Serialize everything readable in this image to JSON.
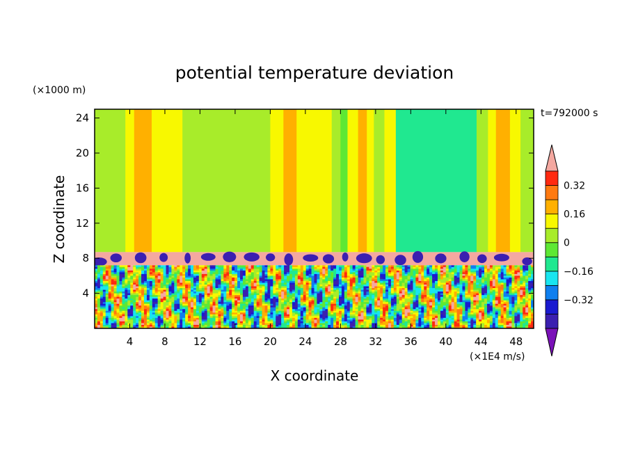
{
  "chart_data": {
    "type": "heatmap",
    "title": "potential temperature deviation",
    "xlabel": "X coordinate",
    "ylabel": "Z coordinate",
    "x_unit": "(×1E4 m/s)",
    "y_unit": "(×1000 m)",
    "time_label": "t=792000 s",
    "xlim": [
      0,
      50
    ],
    "ylim": [
      0,
      25
    ],
    "x_ticks": [
      4,
      8,
      12,
      16,
      20,
      24,
      28,
      32,
      36,
      40,
      44,
      48
    ],
    "y_ticks": [
      4,
      8,
      12,
      16,
      20,
      24
    ],
    "colorbar": {
      "levels": [
        -0.48,
        -0.4,
        -0.32,
        -0.24,
        -0.16,
        -0.08,
        0,
        0.08,
        0.16,
        0.24,
        0.32,
        0.4
      ],
      "colors": [
        "#7a11b8",
        "#3b1fb0",
        "#1a1ad0",
        "#0f7fef",
        "#18e5f0",
        "#20e890",
        "#5ee834",
        "#a8ec2a",
        "#f8f800",
        "#ffb000",
        "#ff7a10",
        "#ff2a10",
        "#f4a8a0"
      ],
      "labels": [
        {
          "value": -0.32,
          "text": "−0.32"
        },
        {
          "value": -0.16,
          "text": "−0.16"
        },
        {
          "value": 0,
          "text": "0"
        },
        {
          "value": 0.16,
          "text": "0.16"
        },
        {
          "value": 0.32,
          "text": "0.32"
        }
      ]
    },
    "upper_layer_bands": [
      {
        "x0": 0,
        "x1": 1.5,
        "value": 0.0
      },
      {
        "x0": 1.5,
        "x1": 3.5,
        "value": 0.06
      },
      {
        "x0": 3.5,
        "x1": 4.5,
        "value": 0.1
      },
      {
        "x0": 4.5,
        "x1": 6.5,
        "value": 0.17
      },
      {
        "x0": 6.5,
        "x1": 10,
        "value": 0.08
      },
      {
        "x0": 10,
        "x1": 12,
        "value": 0.05
      },
      {
        "x0": 12,
        "x1": 15,
        "value": 0.0
      },
      {
        "x0": 15,
        "x1": 20,
        "value": 0.07
      },
      {
        "x0": 20,
        "x1": 21.5,
        "value": 0.09
      },
      {
        "x0": 21.5,
        "x1": 23,
        "value": 0.17
      },
      {
        "x0": 23,
        "x1": 27,
        "value": 0.08
      },
      {
        "x0": 27,
        "x1": 28,
        "value": 0.04
      },
      {
        "x0": 28,
        "x1": 28.8,
        "value": -0.06
      },
      {
        "x0": 28.8,
        "x1": 30,
        "value": 0.1
      },
      {
        "x0": 30,
        "x1": 31,
        "value": 0.18
      },
      {
        "x0": 31,
        "x1": 31.8,
        "value": 0.09
      },
      {
        "x0": 31.8,
        "x1": 33,
        "value": 0.02
      },
      {
        "x0": 33,
        "x1": 34.3,
        "value": 0.09
      },
      {
        "x0": 34.3,
        "x1": 43.5,
        "value": -0.1
      },
      {
        "x0": 43.5,
        "x1": 44.8,
        "value": 0.02
      },
      {
        "x0": 44.8,
        "x1": 45.7,
        "value": 0.1
      },
      {
        "x0": 45.7,
        "x1": 47.3,
        "value": 0.18
      },
      {
        "x0": 47.3,
        "x1": 48.5,
        "value": 0.1
      },
      {
        "x0": 48.5,
        "x1": 50,
        "value": 0.06
      }
    ],
    "inversion_layer": {
      "z0": 7.2,
      "z1": 8.7,
      "value": 0.44
    },
    "boundary_layer": {
      "z0": 0,
      "z1": 7.2,
      "value_range": [
        -0.48,
        0.44
      ]
    }
  }
}
